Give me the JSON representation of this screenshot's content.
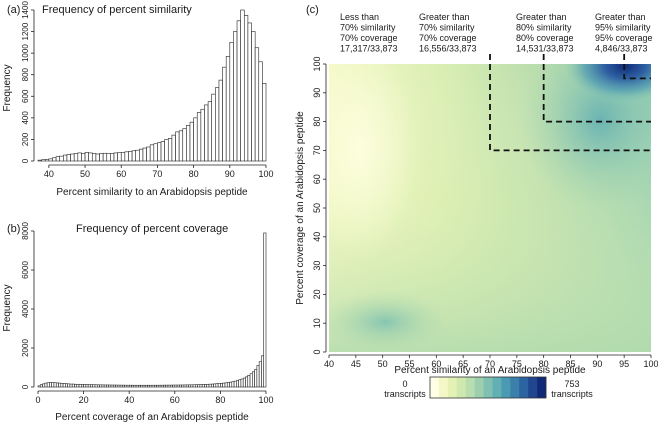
{
  "chart_data": [
    {
      "id": "a",
      "panel_label": "(a)",
      "type": "bar",
      "title": "Frequency of percent similarity",
      "xlabel": "Percent similarity to an Arabidopsis peptide",
      "ylabel": "Frequency",
      "xlim": [
        37,
        100
      ],
      "ylim": [
        0,
        1400
      ],
      "bin_start": 37,
      "bin_width": 1,
      "xticks": [
        40,
        50,
        60,
        70,
        80,
        90,
        100
      ],
      "yticks": [
        0,
        200,
        400,
        600,
        800,
        1000,
        1200,
        1400
      ],
      "values": [
        8,
        12,
        15,
        20,
        30,
        40,
        45,
        55,
        60,
        65,
        70,
        75,
        70,
        80,
        75,
        70,
        65,
        70,
        72,
        68,
        70,
        75,
        78,
        80,
        85,
        90,
        95,
        100,
        110,
        120,
        130,
        150,
        160,
        170,
        180,
        200,
        210,
        240,
        270,
        280,
        300,
        330,
        360,
        400,
        450,
        480,
        520,
        550,
        620,
        680,
        750,
        870,
        970,
        1100,
        1200,
        1300,
        1400,
        1350,
        1280,
        1200,
        1050,
        920,
        720
      ]
    },
    {
      "id": "b",
      "panel_label": "(b)",
      "type": "bar",
      "title": "Frequency of percent coverage",
      "xlabel": "Percent coverage of an Arabidopsis peptide",
      "ylabel": "Frequency",
      "xlim": [
        0,
        100
      ],
      "ylim": [
        0,
        8000
      ],
      "bin_start": 0,
      "bin_width": 1,
      "xticks": [
        0,
        20,
        40,
        60,
        80,
        100
      ],
      "yticks": [
        0,
        2000,
        4000,
        6000,
        8000
      ],
      "values": [
        60,
        120,
        160,
        200,
        220,
        230,
        230,
        220,
        210,
        200,
        190,
        180,
        170,
        160,
        150,
        150,
        140,
        140,
        135,
        130,
        130,
        125,
        120,
        120,
        118,
        115,
        112,
        110,
        108,
        105,
        105,
        102,
        100,
        100,
        98,
        96,
        95,
        94,
        93,
        92,
        92,
        91,
        90,
        90,
        90,
        90,
        90,
        90,
        90,
        90,
        90,
        90,
        91,
        92,
        93,
        94,
        95,
        96,
        97,
        98,
        100,
        100,
        102,
        104,
        106,
        108,
        110,
        112,
        115,
        118,
        120,
        125,
        130,
        135,
        140,
        145,
        150,
        160,
        170,
        180,
        190,
        200,
        215,
        230,
        250,
        270,
        300,
        330,
        370,
        410,
        460,
        520,
        600,
        680,
        780,
        900,
        1100,
        1300,
        1600,
        7900
      ]
    },
    {
      "id": "c",
      "panel_label": "(c)",
      "type": "heatmap",
      "xlabel": "Percent similarity of an Arabidopsis peptide",
      "ylabel": "Percent coverage of an Arabidopsis peptide",
      "xlim": [
        40,
        100
      ],
      "ylim": [
        0,
        100
      ],
      "xticks": [
        40,
        45,
        50,
        55,
        60,
        65,
        70,
        75,
        80,
        85,
        90,
        95,
        100
      ],
      "yticks": [
        0,
        10,
        20,
        30,
        40,
        50,
        60,
        70,
        80,
        90,
        100
      ],
      "color_scale": {
        "min_label": "0",
        "min_unit": "transcripts",
        "max_label": "753",
        "max_unit": "transcripts",
        "colors": [
          "#ffffe5",
          "#f4f8c6",
          "#e3f1b4",
          "#cfe8b0",
          "#b8ddae",
          "#9ccfae",
          "#7fc0b0",
          "#62b0b3",
          "#4a9ab3",
          "#3a80aa",
          "#2b64a0",
          "#204690",
          "#112a75"
        ]
      },
      "thresholds": [
        {
          "label": "Less than",
          "similarity": "70% similarity",
          "coverage": "70% coverage",
          "count": "17,317/33,873"
        },
        {
          "label": "Greater than",
          "similarity": "70% similarity",
          "coverage": "70% coverage",
          "count": "16,556/33,873",
          "x": 70,
          "y": 70
        },
        {
          "label": "Greater than",
          "similarity": "80% similarity",
          "coverage": "80% coverage",
          "count": "14,531/33,873",
          "x": 80,
          "y": 80
        },
        {
          "label": "Greater than",
          "similarity": "95% similarity",
          "coverage": "95% coverage",
          "count": "4,846/33,873",
          "x": 95,
          "y": 95
        }
      ]
    }
  ]
}
